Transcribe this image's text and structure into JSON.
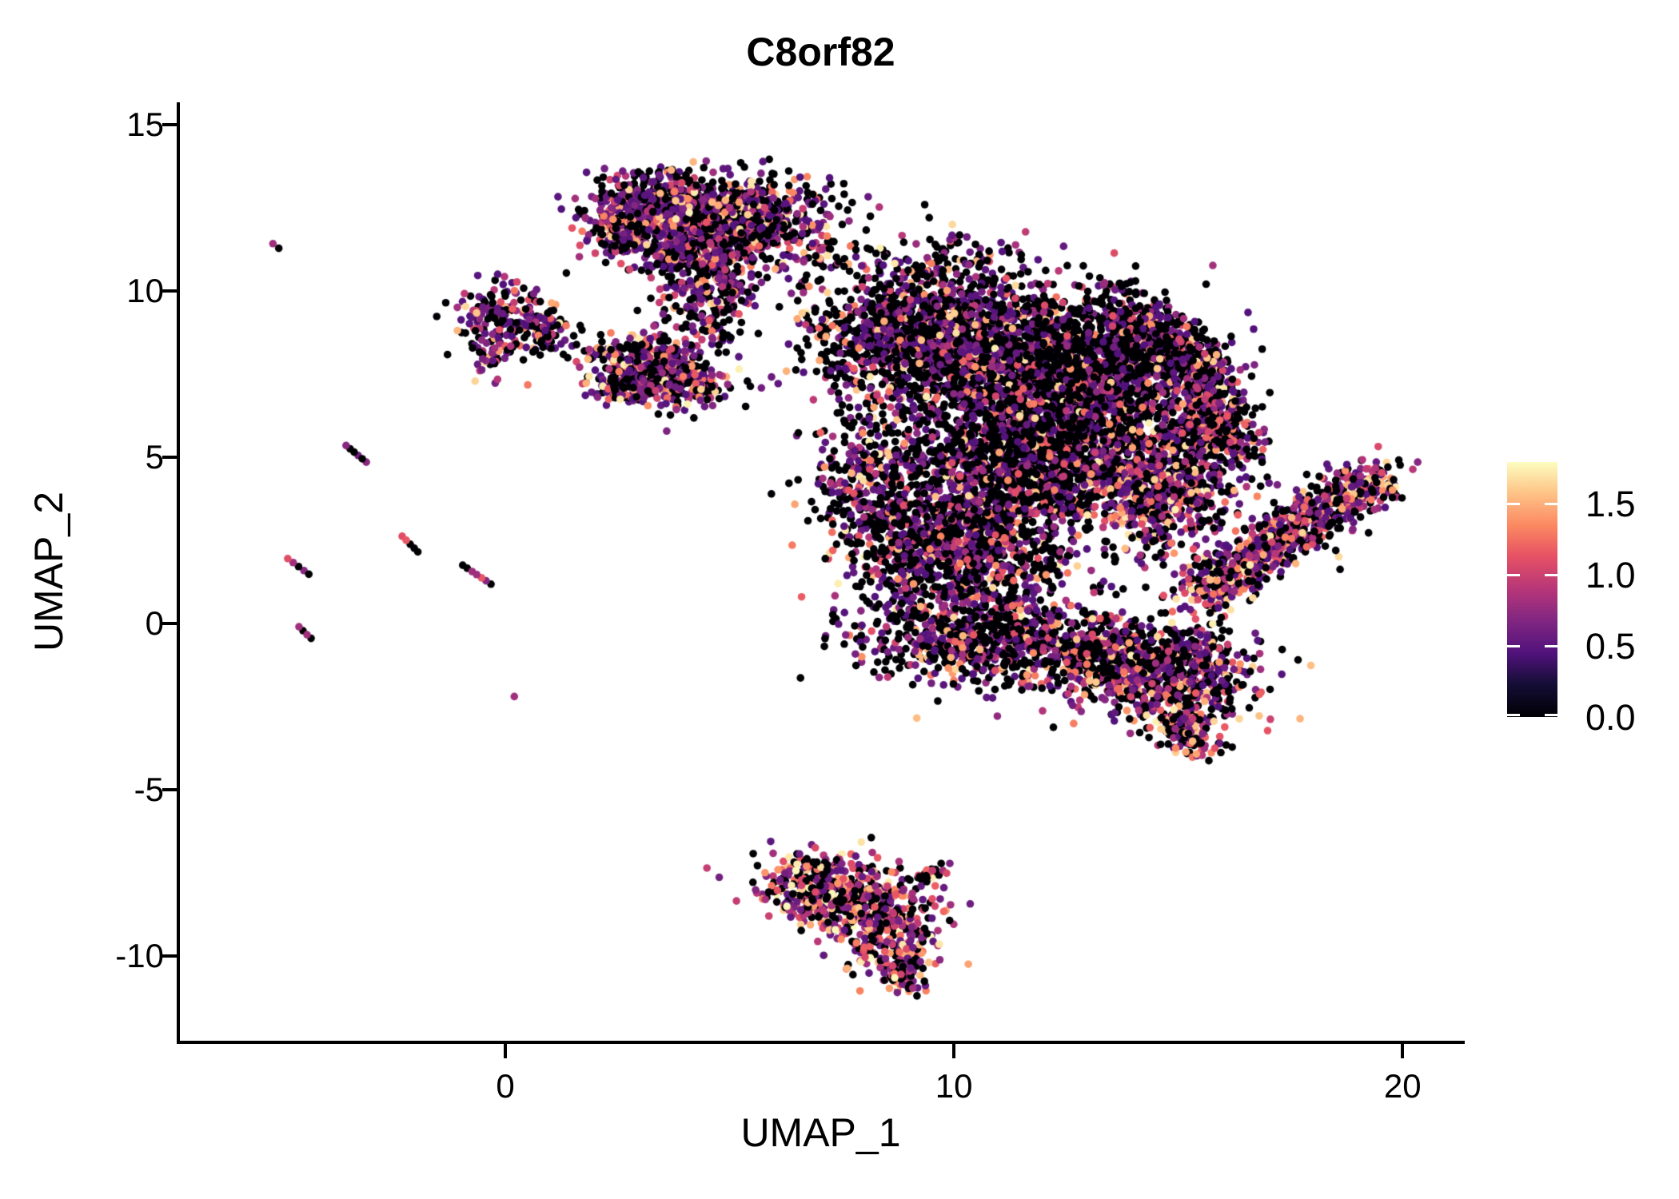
{
  "title": "C8orf82",
  "axes": {
    "x": {
      "label": "UMAP_1",
      "ticks": [
        0,
        10,
        20
      ],
      "tick_labels": [
        "0",
        "10",
        "20"
      ],
      "range": [
        -7.29,
        21.35
      ]
    },
    "y": {
      "label": "UMAP_2",
      "ticks": [
        15,
        10,
        5,
        0,
        -5,
        -10
      ],
      "tick_labels": [
        "15",
        "10",
        "5",
        "0",
        "-5",
        "-10"
      ],
      "range": [
        -12.55,
        15.67
      ]
    }
  },
  "colorbar": {
    "tick_values": [
      1.5,
      1.0,
      0.5,
      0.0
    ],
    "labels": [
      "1.5",
      "1.0",
      "0.5",
      "0.0"
    ],
    "vmin": 0,
    "vmax": 1.79
  },
  "chart_data": {
    "type": "scatter",
    "title": "C8orf82",
    "xlabel": "UMAP_1",
    "ylabel": "UMAP_2",
    "xlim": [
      -7.29,
      21.35
    ],
    "ylim": [
      -12.55,
      15.67
    ],
    "grid": false,
    "legend_position": "right",
    "point_radius_px": 4.8,
    "seed": 42,
    "color_scale": {
      "name": "magma",
      "vmin": 0,
      "vmax": 1.79,
      "stops": [
        [
          0.0,
          "#000004"
        ],
        [
          0.13,
          "#140e36"
        ],
        [
          0.25,
          "#51127c"
        ],
        [
          0.38,
          "#822681"
        ],
        [
          0.5,
          "#b63679"
        ],
        [
          0.63,
          "#e65164"
        ],
        [
          0.75,
          "#fb8861"
        ],
        [
          0.88,
          "#fec488"
        ],
        [
          1.0,
          "#fcfdbf"
        ]
      ]
    },
    "value_model_note": "expression v=0 with prob p0 else v=vbase+vspan*u^gamma",
    "clusters": [
      {
        "name": "top-center-blob",
        "p0": 0.38,
        "gamma": 2.3,
        "vbase": 0.45,
        "vspan": 1.3,
        "lobes": [
          {
            "cx": 3.3,
            "cy": 12.5,
            "sx": 0.8,
            "sy": 0.55,
            "n": 480
          },
          {
            "cx": 5.0,
            "cy": 12.3,
            "sx": 0.95,
            "sy": 0.6,
            "n": 560
          },
          {
            "cx": 4.2,
            "cy": 11.3,
            "sx": 0.8,
            "sy": 0.5,
            "n": 320
          },
          {
            "cx": 4.5,
            "cy": 9.8,
            "sx": 0.5,
            "sy": 0.8,
            "n": 230
          },
          {
            "cx": 2.6,
            "cy": 11.9,
            "sx": 0.4,
            "sy": 0.45,
            "n": 130
          }
        ]
      },
      {
        "name": "top-center-right-scatter",
        "p0": 0.58,
        "gamma": 2.3,
        "vbase": 0.45,
        "vspan": 1.3,
        "lobes": [
          {
            "cx": 6.6,
            "cy": 11.5,
            "sx": 0.95,
            "sy": 0.85,
            "n": 140
          },
          {
            "cx": 10.1,
            "cy": 10.9,
            "sx": 0.9,
            "sy": 0.55,
            "n": 70
          }
        ]
      },
      {
        "name": "left-hook-cluster",
        "p0": 0.45,
        "gamma": 2.0,
        "vbase": 0.45,
        "vspan": 1.3,
        "lobes": [
          {
            "cx": -0.1,
            "cy": 9.3,
            "sx": 0.55,
            "sy": 0.5,
            "n": 150
          },
          {
            "cx": 0.8,
            "cy": 8.7,
            "sx": 0.4,
            "sy": 0.4,
            "n": 70
          },
          {
            "cx": -0.3,
            "cy": 8.2,
            "sx": 0.3,
            "sy": 0.4,
            "n": 50
          }
        ]
      },
      {
        "name": "left-mid-triangle-cluster",
        "p0": 0.36,
        "gamma": 2.2,
        "vbase": 0.45,
        "vspan": 1.3,
        "lobes": [
          {
            "cx": 3.1,
            "cy": 7.8,
            "sx": 0.6,
            "sy": 0.45,
            "n": 260
          },
          {
            "cx": 3.9,
            "cy": 7.2,
            "sx": 0.55,
            "sy": 0.4,
            "n": 200
          },
          {
            "cx": 2.6,
            "cy": 7.1,
            "sx": 0.35,
            "sy": 0.3,
            "n": 80
          }
        ]
      },
      {
        "name": "between-clusters-dots",
        "p0": 0.4,
        "gamma": 1.8,
        "vbase": 0.5,
        "vspan": 1.2,
        "lobes": [
          {
            "cx": 1.85,
            "cy": 8.05,
            "sx": 0.35,
            "sy": 0.3,
            "n": 10
          }
        ]
      },
      {
        "name": "main-mass-topleft",
        "p0": 0.52,
        "gamma": 2.4,
        "vbase": 0.45,
        "vspan": 1.3,
        "lobes": [
          {
            "cx": 9.4,
            "cy": 8.7,
            "sx": 1.3,
            "sy": 1.0,
            "n": 1350
          }
        ]
      },
      {
        "name": "main-mass-dark-core",
        "p0": 0.64,
        "gamma": 2.6,
        "vbase": 0.45,
        "vspan": 1.3,
        "lobes": [
          {
            "cx": 12.2,
            "cy": 7.1,
            "sx": 1.45,
            "sy": 1.35,
            "n": 2500
          }
        ]
      },
      {
        "name": "main-mass-left-spur",
        "p0": 0.55,
        "gamma": 2.4,
        "vbase": 0.45,
        "vspan": 1.3,
        "lobes": [
          {
            "cx": 8.2,
            "cy": 4.3,
            "sx": 0.7,
            "sy": 1.1,
            "n": 350
          },
          {
            "cx": 11.4,
            "cy": 4.4,
            "sx": 1.25,
            "sy": 1.0,
            "n": 750
          }
        ]
      },
      {
        "name": "main-mass-right-edge",
        "p0": 0.4,
        "gamma": 2.0,
        "vbase": 0.45,
        "vspan": 1.3,
        "lobes": [
          {
            "cx": 14.5,
            "cy": 4.2,
            "sx": 0.95,
            "sy": 1.05,
            "n": 780
          }
        ]
      },
      {
        "name": "main-mass-lower",
        "p0": 0.5,
        "gamma": 2.4,
        "vbase": 0.45,
        "vspan": 1.3,
        "lobes": [
          {
            "cx": 10.1,
            "cy": 2.3,
            "sx": 1.25,
            "sy": 1.05,
            "n": 1000
          },
          {
            "cx": 10.4,
            "cy": -0.4,
            "sx": 1.3,
            "sy": 0.75,
            "n": 600
          },
          {
            "cx": 12.7,
            "cy": -0.8,
            "sx": 0.95,
            "sy": 0.6,
            "n": 320
          }
        ]
      },
      {
        "name": "lower-right-lobe",
        "p0": 0.42,
        "gamma": 2.0,
        "vbase": 0.45,
        "vspan": 1.3,
        "lobes": [
          {
            "cx": 14.9,
            "cy": -1.5,
            "sx": 0.9,
            "sy": 0.75,
            "n": 620
          },
          {
            "cx": 13.6,
            "cy": -1.0,
            "sx": 0.5,
            "sy": 0.5,
            "n": 150
          }
        ]
      },
      {
        "name": "bottom-wedge-cluster",
        "p0": 0.28,
        "gamma": 1.5,
        "vbase": 0.5,
        "vspan": 1.3,
        "lobes": [
          {
            "cx": 6.9,
            "cy": -7.9,
            "sx": 0.75,
            "sy": 0.5,
            "n": 300
          },
          {
            "cx": 8.0,
            "cy": -8.5,
            "sx": 0.75,
            "sy": 0.55,
            "n": 280
          },
          {
            "cx": 8.6,
            "cy": -9.6,
            "sx": 0.5,
            "sy": 0.6,
            "n": 220
          }
        ]
      }
    ],
    "segments": [
      {
        "name": "crescent-top",
        "x1": 13.55,
        "y1": 9.45,
        "x2": 15.35,
        "y2": 7.7,
        "jitter": 0.5,
        "n": 480,
        "p0": 0.5,
        "gamma": 2.3,
        "vbase": 0.45,
        "vspan": 1.3
      },
      {
        "name": "crescent-right",
        "x1": 15.45,
        "y1": 7.6,
        "x2": 16.05,
        "y2": 5.2,
        "jitter": 0.42,
        "n": 420,
        "p0": 0.45,
        "gamma": 2.2,
        "vbase": 0.45,
        "vspan": 1.3
      },
      {
        "name": "right-blade",
        "x1": 15.45,
        "y1": 0.8,
        "x2": 19.35,
        "y2": 4.45,
        "jitter": 0.42,
        "n": 850,
        "p0": 0.32,
        "gamma": 1.9,
        "vbase": 0.45,
        "vspan": 1.3
      },
      {
        "name": "lower-right-tail",
        "x1": 15.0,
        "y1": -2.7,
        "x2": 15.45,
        "y2": -3.75,
        "jitter": 0.28,
        "n": 130,
        "p0": 0.4,
        "gamma": 2.0,
        "vbase": 0.45,
        "vspan": 1.3
      },
      {
        "name": "bottom-tip-tail",
        "x1": 8.75,
        "y1": -10.3,
        "x2": 8.85,
        "y2": -10.9,
        "jitter": 0.18,
        "n": 50,
        "p0": 0.3,
        "gamma": 1.5,
        "vbase": 0.5,
        "vspan": 1.3
      },
      {
        "name": "bottom-right-arm",
        "x1": 9.1,
        "y1": -7.7,
        "x2": 9.7,
        "y2": -7.35,
        "jitter": 0.12,
        "n": 25,
        "p0": 0.7,
        "gamma": 1.8,
        "vbase": 0.45,
        "vspan": 1.3
      }
    ],
    "streaks": [
      {
        "name": "tiny-streak-far-left-top",
        "points": [
          [
            -5.18,
            11.42
          ],
          [
            -5.05,
            11.28
          ]
        ],
        "values": [
          0.8,
          0
        ]
      },
      {
        "name": "streak-upper",
        "points": [
          [
            -3.55,
            5.35
          ],
          [
            -3.46,
            5.25
          ],
          [
            -3.37,
            5.15
          ],
          [
            -3.28,
            5.05
          ],
          [
            -3.19,
            4.95
          ],
          [
            -3.1,
            4.85
          ]
        ],
        "values": [
          0.7,
          0,
          0,
          0.6,
          0,
          0.7
        ]
      },
      {
        "name": "streak-mid",
        "points": [
          [
            -2.3,
            2.62
          ],
          [
            -2.21,
            2.5
          ],
          [
            -2.12,
            2.38
          ],
          [
            -2.03,
            2.26
          ],
          [
            -1.95,
            2.15
          ]
        ],
        "values": [
          1.1,
          1.15,
          0,
          0,
          0
        ]
      },
      {
        "name": "streak-left",
        "points": [
          [
            -4.85,
            1.95
          ],
          [
            -4.73,
            1.83
          ],
          [
            -4.61,
            1.71
          ],
          [
            -4.49,
            1.59
          ],
          [
            -4.38,
            1.48
          ]
        ],
        "values": [
          1.1,
          0.8,
          0,
          0.7,
          0
        ]
      },
      {
        "name": "streak-center",
        "points": [
          [
            -0.95,
            1.75
          ],
          [
            -0.85,
            1.66
          ],
          [
            -0.74,
            1.56
          ],
          [
            -0.64,
            1.47
          ],
          [
            -0.53,
            1.37
          ],
          [
            -0.43,
            1.28
          ],
          [
            -0.32,
            1.18
          ]
        ],
        "values": [
          0,
          0,
          0.8,
          0.8,
          1.15,
          0.7,
          0
        ]
      },
      {
        "name": "streak-lower-left",
        "points": [
          [
            -4.6,
            -0.1
          ],
          [
            -4.51,
            -0.22
          ],
          [
            -4.42,
            -0.34
          ],
          [
            -4.33,
            -0.45
          ]
        ],
        "values": [
          0.8,
          0,
          0.8,
          0
        ]
      },
      {
        "name": "single-dot",
        "points": [
          [
            0.2,
            -2.2
          ]
        ],
        "values": [
          0.8
        ]
      }
    ]
  }
}
